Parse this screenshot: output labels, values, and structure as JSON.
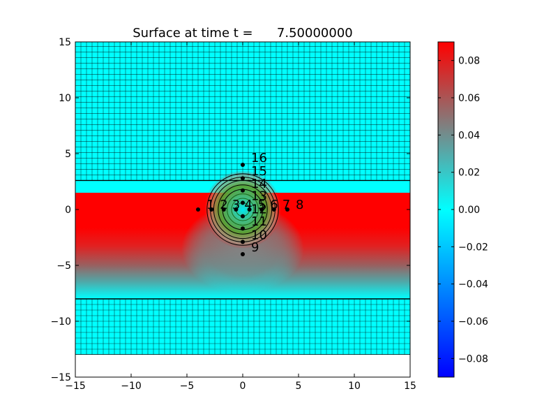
{
  "chart_data": {
    "type": "heatmap",
    "title": "Surface at time t =      7.50000000",
    "xlabel": "",
    "ylabel": "",
    "xlim": [
      -15,
      15
    ],
    "ylim": [
      -15,
      15
    ],
    "x_ticks": [
      -15,
      -10,
      -5,
      0,
      5,
      10,
      15
    ],
    "y_ticks": [
      -15,
      -10,
      -5,
      0,
      5,
      10,
      15
    ],
    "x_tick_labels": [
      "−15",
      "−10",
      "−5",
      "0",
      "5",
      "10",
      "15"
    ],
    "y_tick_labels": [
      "−15",
      "−10",
      "−5",
      "0",
      "5",
      "10",
      "15"
    ],
    "grid": false,
    "domain": {
      "x": [
        -15,
        15
      ],
      "y": [
        -13,
        15
      ]
    },
    "refined_band": {
      "y": [
        -8,
        2.6
      ]
    },
    "red_band": {
      "y": [
        -8,
        1.5
      ],
      "full_value_y": [
        -2,
        1.5
      ]
    },
    "hump": {
      "center": [
        0,
        0
      ],
      "radius": 3.5
    },
    "contour_radii": [
      0.6,
      1.0,
      1.4,
      1.8,
      2.2,
      2.6,
      2.9,
      3.2
    ],
    "colorbar": {
      "range": [
        -0.09,
        0.09
      ],
      "ticks": [
        -0.08,
        -0.06,
        -0.04,
        -0.02,
        0.0,
        0.02,
        0.04,
        0.06,
        0.08
      ],
      "tick_labels": [
        "−0.08",
        "−0.06",
        "−0.04",
        "−0.02",
        "0.00",
        "0.02",
        "0.04",
        "0.06",
        "0.08"
      ],
      "colors": [
        "#0000ff",
        "#00ffff",
        "#ff0000"
      ]
    },
    "gauges": [
      {
        "id": "1",
        "x": -4.0,
        "y": 0.0
      },
      {
        "id": "2",
        "x": -2.8,
        "y": 0.0
      },
      {
        "id": "3",
        "x": -1.7,
        "y": 0.0
      },
      {
        "id": "4",
        "x": -0.6,
        "y": 0.0
      },
      {
        "id": "5",
        "x": 0.6,
        "y": 0.0
      },
      {
        "id": "6",
        "x": 1.7,
        "y": 0.0
      },
      {
        "id": "7",
        "x": 2.8,
        "y": 0.0
      },
      {
        "id": "8",
        "x": 4.0,
        "y": 0.0
      },
      {
        "id": "9",
        "x": 0.0,
        "y": -4.0
      },
      {
        "id": "10",
        "x": 0.0,
        "y": -2.9
      },
      {
        "id": "11",
        "x": 0.0,
        "y": -1.7
      },
      {
        "id": "12",
        "x": 0.0,
        "y": -0.6
      },
      {
        "id": "13",
        "x": 0.0,
        "y": 0.6
      },
      {
        "id": "14",
        "x": 0.0,
        "y": 1.7
      },
      {
        "id": "15",
        "x": 0.0,
        "y": 2.8
      },
      {
        "id": "16",
        "x": 0.0,
        "y": 4.0
      }
    ]
  }
}
